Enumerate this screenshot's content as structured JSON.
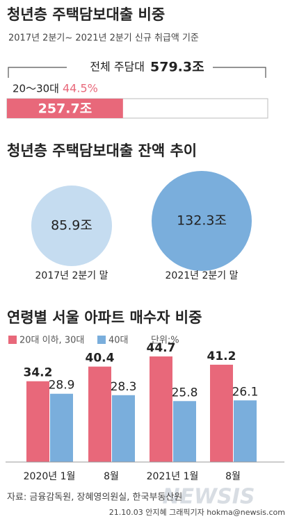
{
  "chart_data": [
    {
      "type": "proportion-bar",
      "title": "청년층 주택담보대출 비중",
      "subtitle": "2017년 2분기~ 2021년 2분기 신규 취급액 기준",
      "categories": [
        "전체 주담대",
        "20～30대"
      ],
      "values": [
        579.3,
        257.7
      ],
      "value_labels": [
        "579.3조",
        "257.7조"
      ],
      "share_label": "44.5%",
      "colors": [
        "#ffffff",
        "#e8687a"
      ]
    },
    {
      "type": "bubble",
      "title": "청년층 주택담보대출 잔액 추이",
      "categories": [
        "2017년 2분기 말",
        "2021년 2분기 말"
      ],
      "values": [
        85.9,
        132.3
      ],
      "value_labels": [
        "85.9조",
        "132.3조"
      ],
      "colors": [
        "#c5dcf0",
        "#7aaedc"
      ]
    },
    {
      "type": "grouped-bar",
      "title": "연령별 서울 아파트 매수자 비중",
      "unit": "단위:%",
      "categories": [
        "2020년 1월",
        "8월",
        "2021년 1월",
        "8월"
      ],
      "series": [
        {
          "name": "20대 이하, 30대",
          "color": "#e8687a",
          "values": [
            34.2,
            40.4,
            44.7,
            41.2
          ]
        },
        {
          "name": "40대",
          "color": "#7aaedc",
          "values": [
            28.9,
            28.3,
            25.8,
            26.1
          ]
        }
      ]
    }
  ],
  "footer": {
    "source": "자료: 금융감독원, 장혜영의원실, 한국부동산원",
    "credit": "21.10.03 안지혜 그래픽기자 hokma@newsis.com",
    "watermark": "NEWSIS"
  }
}
